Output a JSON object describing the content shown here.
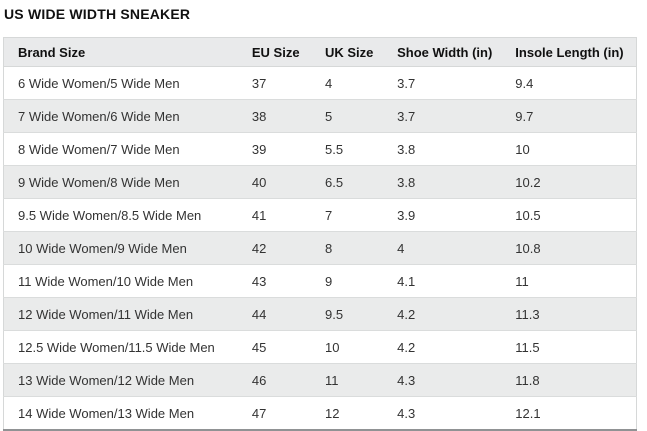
{
  "page": {
    "title": "US WIDE WIDTH SNEAKER"
  },
  "table": {
    "columns": [
      "Brand Size",
      "EU Size",
      "UK Size",
      "Shoe Width (in)",
      "Insole Length (in)"
    ],
    "rows": [
      [
        "6 Wide Women/5 Wide Men",
        "37",
        "4",
        "3.7",
        "9.4"
      ],
      [
        "7 Wide Women/6 Wide Men",
        "38",
        "5",
        "3.7",
        "9.7"
      ],
      [
        "8 Wide Women/7 Wide Men",
        "39",
        "5.5",
        "3.8",
        "10"
      ],
      [
        "9 Wide Women/8 Wide Men",
        "40",
        "6.5",
        "3.8",
        "10.2"
      ],
      [
        "9.5 Wide Women/8.5 Wide Men",
        "41",
        "7",
        "3.9",
        "10.5"
      ],
      [
        "10 Wide Women/9 Wide Men",
        "42",
        "8",
        "4",
        "10.8"
      ],
      [
        "11 Wide Women/10 Wide Men",
        "43",
        "9",
        "4.1",
        "11"
      ],
      [
        "12 Wide Women/11 Wide Men",
        "44",
        "9.5",
        "4.2",
        "11.3"
      ],
      [
        "12.5 Wide Women/11.5 Wide Men",
        "45",
        "10",
        "4.2",
        "11.5"
      ],
      [
        "13 Wide Women/12 Wide Men",
        "46",
        "11",
        "4.3",
        "11.8"
      ],
      [
        "14 Wide Women/13 Wide Men",
        "47",
        "12",
        "4.3",
        "12.1"
      ]
    ]
  },
  "colors": {
    "header_bg": "#e9eaeb",
    "stripe_bg": "#eaebeb",
    "border": "#d6d8d8",
    "row_border": "#dadcdc",
    "bottom_border": "#909294",
    "heading_text": "#111111",
    "cell_text": "#333333"
  }
}
